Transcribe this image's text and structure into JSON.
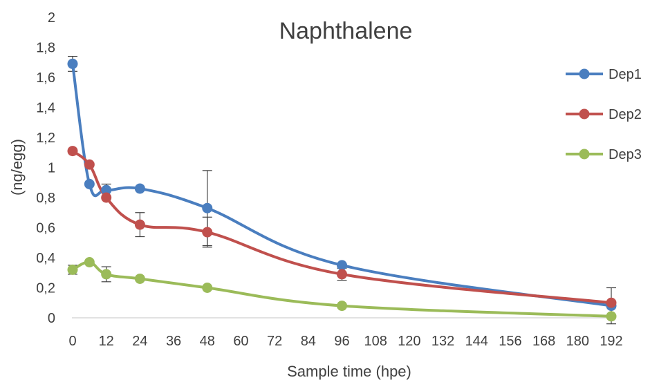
{
  "chart_data": {
    "type": "line",
    "title": "Naphthalene",
    "xlabel": "Sample time (hpe)",
    "ylabel": "(ng/egg)",
    "xlim": [
      0,
      192
    ],
    "ylim": [
      0,
      2
    ],
    "x_ticks": [
      "0",
      "12",
      "24",
      "36",
      "48",
      "60",
      "72",
      "84",
      "96",
      "108",
      "120",
      "132",
      "144",
      "156",
      "168",
      "180",
      "192"
    ],
    "y_ticks": [
      "0",
      "0,2",
      "0,4",
      "0,6",
      "0,8",
      "1",
      "1,2",
      "1,4",
      "1,6",
      "1,8",
      "2"
    ],
    "grid": false,
    "legend_position": "right",
    "series": [
      {
        "name": "Dep1",
        "color": "#4a7ebf",
        "x": [
          0,
          6,
          12,
          24,
          48,
          96,
          192
        ],
        "y": [
          1.69,
          0.89,
          0.85,
          0.86,
          0.73,
          0.35,
          0.08
        ],
        "error": [
          0.05,
          0,
          0.04,
          0,
          0.25,
          0,
          0.12
        ]
      },
      {
        "name": "Dep2",
        "color": "#c0504d",
        "x": [
          0,
          6,
          12,
          24,
          48,
          96,
          192
        ],
        "y": [
          1.11,
          1.02,
          0.8,
          0.62,
          0.57,
          0.29,
          0.1
        ],
        "error": [
          0,
          0,
          0,
          0.08,
          0.1,
          0.04,
          0
        ]
      },
      {
        "name": "Dep3",
        "color": "#9bbb59",
        "x": [
          0,
          6,
          12,
          24,
          48,
          96,
          192
        ],
        "y": [
          0.32,
          0.37,
          0.29,
          0.26,
          0.2,
          0.08,
          0.01
        ],
        "error": [
          0.03,
          0,
          0.05,
          0,
          0,
          0,
          0
        ]
      }
    ]
  }
}
